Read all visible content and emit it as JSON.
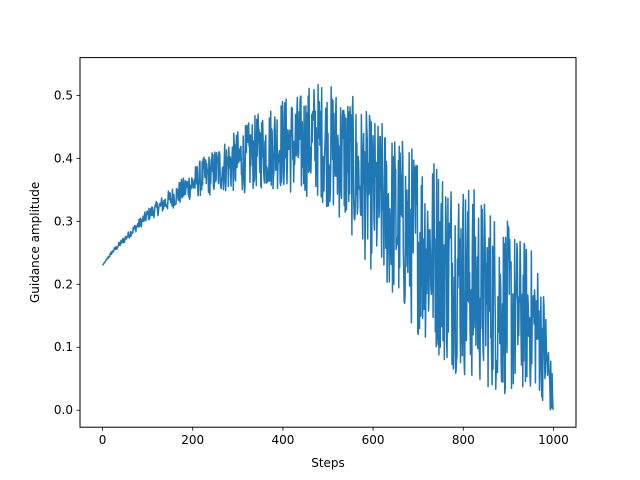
{
  "chart_data": {
    "type": "line",
    "title": "",
    "xlabel": "Steps",
    "ylabel": "Guidance amplitude",
    "xlim": [
      -50,
      1050
    ],
    "ylim": [
      -0.027,
      0.56
    ],
    "xticks": [
      0,
      200,
      400,
      600,
      800,
      1000
    ],
    "xtick_labels": [
      "0",
      "200",
      "400",
      "600",
      "800",
      "1000"
    ],
    "yticks": [
      0.0,
      0.1,
      0.2,
      0.3,
      0.4,
      0.5
    ],
    "ytick_labels": [
      "0.0",
      "0.1",
      "0.2",
      "0.3",
      "0.4",
      "0.5"
    ],
    "grid": false,
    "legend": "none",
    "line_color": "#1f77b4",
    "series": [
      {
        "x": [
          0,
          20,
          40,
          60,
          80,
          100,
          120,
          140,
          160,
          180,
          200,
          220,
          240,
          260,
          280,
          300,
          320,
          340,
          360,
          380,
          400,
          420,
          440,
          460,
          480,
          500,
          520,
          540,
          560,
          580,
          600,
          620,
          640,
          660,
          680,
          700,
          720,
          740,
          760,
          780,
          800,
          820,
          840,
          860,
          880,
          900,
          920,
          940,
          960,
          980,
          1000
        ],
        "y": [
          0.23,
          0.25,
          0.265,
          0.28,
          0.295,
          0.31,
          0.32,
          0.33,
          0.34,
          0.35,
          0.36,
          0.37,
          0.375,
          0.385,
          0.39,
          0.395,
          0.4,
          0.41,
          0.415,
          0.42,
          0.425,
          0.42,
          0.42,
          0.43,
          0.43,
          0.42,
          0.41,
          0.4,
          0.38,
          0.36,
          0.34,
          0.33,
          0.31,
          0.3,
          0.28,
          0.27,
          0.26,
          0.25,
          0.23,
          0.22,
          0.21,
          0.2,
          0.19,
          0.18,
          0.17,
          0.16,
          0.15,
          0.15,
          0.14,
          0.1,
          0.01
        ],
        "noise_envelope": [
          0.0,
          0.003,
          0.005,
          0.006,
          0.008,
          0.01,
          0.012,
          0.015,
          0.018,
          0.02,
          0.025,
          0.03,
          0.035,
          0.04,
          0.045,
          0.05,
          0.055,
          0.06,
          0.065,
          0.07,
          0.075,
          0.08,
          0.085,
          0.09,
          0.095,
          0.1,
          0.105,
          0.11,
          0.115,
          0.12,
          0.125,
          0.13,
          0.135,
          0.14,
          0.145,
          0.15,
          0.155,
          0.16,
          0.16,
          0.16,
          0.16,
          0.16,
          0.155,
          0.15,
          0.145,
          0.14,
          0.13,
          0.12,
          0.11,
          0.09,
          0.03
        ]
      }
    ]
  }
}
